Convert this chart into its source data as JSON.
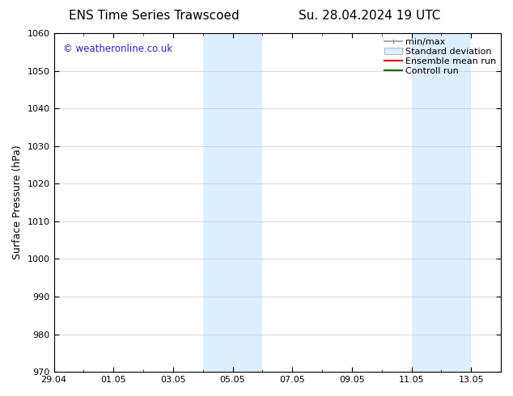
{
  "title_left": "ENS Time Series Trawscoed",
  "title_right": "Su. 28.04.2024 19 UTC",
  "ylabel": "Surface Pressure (hPa)",
  "ylim": [
    970,
    1060
  ],
  "yticks": [
    970,
    980,
    990,
    1000,
    1010,
    1020,
    1030,
    1040,
    1050,
    1060
  ],
  "xtick_labels": [
    "29.04",
    "01.05",
    "03.05",
    "05.05",
    "07.05",
    "09.05",
    "11.05",
    "13.05"
  ],
  "xtick_positions": [
    0,
    2,
    4,
    6,
    8,
    10,
    12,
    14
  ],
  "xlim": [
    0,
    15
  ],
  "shaded_bands": [
    {
      "start": 5,
      "end": 7
    },
    {
      "start": 12,
      "end": 14
    }
  ],
  "shaded_color": "#ddeeff",
  "watermark_text": "© weatheronline.co.uk",
  "watermark_color": "#2222cc",
  "legend_items": [
    {
      "label": "min/max"
    },
    {
      "label": "Standard deviation"
    },
    {
      "label": "Ensemble mean run"
    },
    {
      "label": "Controll run"
    }
  ],
  "legend_colors": [
    "#999999",
    "#cccccc",
    "#dd0000",
    "#006600"
  ],
  "background_color": "#ffffff",
  "grid_color": "#cccccc",
  "title_fontsize": 11,
  "axis_label_fontsize": 9,
  "tick_fontsize": 8,
  "legend_fontsize": 8
}
